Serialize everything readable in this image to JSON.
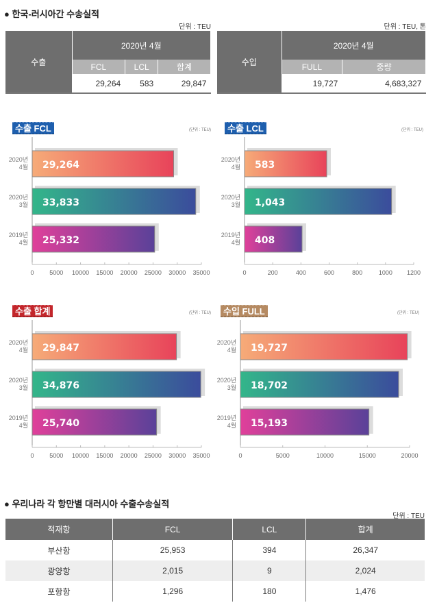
{
  "section1": {
    "title": "● 한국-러시아간 수송실적",
    "export_unit": "단위 : TEU",
    "import_unit": "단위 : TEU, 톤",
    "export_table": {
      "row_label": "수출",
      "period": "2020년 4월",
      "headers": [
        "FCL",
        "LCL",
        "합계"
      ],
      "values": [
        "29,264",
        "583",
        "29,847"
      ]
    },
    "import_table": {
      "row_label": "수입",
      "period": "2020년 4월",
      "headers": [
        "FULL",
        "중량"
      ],
      "values": [
        "19,727",
        "4,683,327"
      ]
    }
  },
  "chart_data": [
    {
      "type": "bar",
      "title": "수출 FCL",
      "unit": "(단위 : TEU)",
      "badge_color": "#1e5fae",
      "categories": [
        [
          "2020년",
          "4월"
        ],
        [
          "2020년",
          "3월"
        ],
        [
          "2019년",
          "4월"
        ]
      ],
      "values": [
        29264,
        33833,
        25332
      ],
      "labels": [
        "29,264",
        "33,833",
        "25,332"
      ],
      "xlim": [
        0,
        35000
      ],
      "ticks": [
        0,
        5000,
        10000,
        15000,
        20000,
        25000,
        30000,
        35000
      ]
    },
    {
      "type": "bar",
      "title": "수출 LCL",
      "unit": "(단위 : TEU)",
      "badge_color": "#1e5fae",
      "categories": [
        [
          "2020년",
          "4월"
        ],
        [
          "2020년",
          "3월"
        ],
        [
          "2019년",
          "4월"
        ]
      ],
      "values": [
        583,
        1043,
        408
      ],
      "labels": [
        "583",
        "1,043",
        "408"
      ],
      "xlim": [
        0,
        1200
      ],
      "ticks": [
        0,
        200,
        400,
        600,
        800,
        1000,
        1200
      ]
    },
    {
      "type": "bar",
      "title": "수출 합계",
      "unit": "(단위 : TEU)",
      "badge_color": "#c3262b",
      "categories": [
        [
          "2020년",
          "4월"
        ],
        [
          "2020년",
          "3월"
        ],
        [
          "2019년",
          "4월"
        ]
      ],
      "values": [
        29847,
        34876,
        25740
      ],
      "labels": [
        "29,847",
        "34,876",
        "25,740"
      ],
      "xlim": [
        0,
        35000
      ],
      "ticks": [
        0,
        5000,
        10000,
        15000,
        20000,
        25000,
        30000,
        35000
      ]
    },
    {
      "type": "bar",
      "title": "수입 FULL",
      "unit": "(단위 : TEU)",
      "badge_color": "#b58a62",
      "categories": [
        [
          "2020년",
          "4월"
        ],
        [
          "2020년",
          "3월"
        ],
        [
          "2019년",
          "4월"
        ]
      ],
      "values": [
        19727,
        18702,
        15193
      ],
      "labels": [
        "19,727",
        "18,702",
        "15,193"
      ],
      "xlim": [
        0,
        20000
      ],
      "ticks": [
        0,
        5000,
        10000,
        15000,
        20000
      ]
    }
  ],
  "gradients": [
    [
      "#f6ab78",
      "#e8435a"
    ],
    [
      "#33b68a",
      "#3b4c9c"
    ],
    [
      "#e0409a",
      "#5a4199"
    ]
  ],
  "section2": {
    "title": "● 우리나라 각 항만별 대러시아 수출수송실적",
    "unit": "단위 : TEU",
    "headers": [
      "적재항",
      "FCL",
      "LCL",
      "합계"
    ],
    "rows": [
      [
        "부산항",
        "25,953",
        "394",
        "26,347"
      ],
      [
        "광양항",
        "2,015",
        "9",
        "2,024"
      ],
      [
        "포항항",
        "1,296",
        "180",
        "1,476"
      ]
    ]
  }
}
